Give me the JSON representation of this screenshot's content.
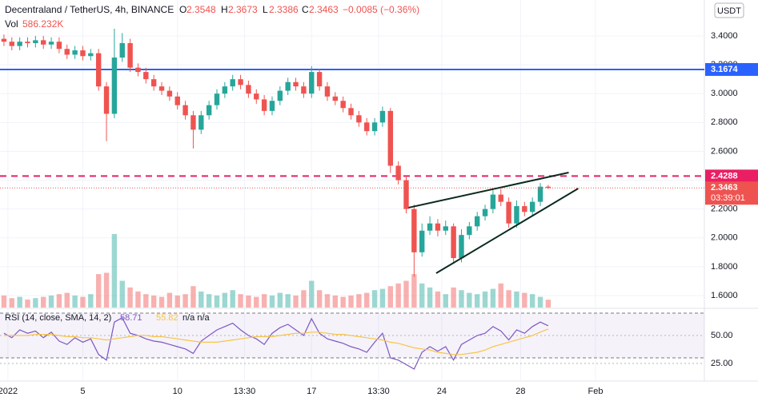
{
  "chart_data": {
    "type": "candlestick",
    "title": "Decentraland / TetherUS, 4h, BINANCE",
    "header": {
      "o": "O",
      "h": "H",
      "l": "L",
      "c": "C",
      "change": "−0.0085 (−0.36%)",
      "vol": "Vol",
      "vol_label": "586.232K"
    },
    "currency": "USDT",
    "xlim": [
      -0.5,
      88.8
    ],
    "xticks": [
      {
        "value": 0.5,
        "label": "2022"
      },
      {
        "value": 10,
        "label": "5"
      },
      {
        "value": 22,
        "label": "10"
      },
      {
        "value": 30.5,
        "label": "13:30"
      },
      {
        "value": 39,
        "label": "17"
      },
      {
        "value": 47.5,
        "label": "13:30"
      },
      {
        "value": 55.5,
        "label": "24"
      },
      {
        "value": 65.5,
        "label": "28"
      },
      {
        "value": 75,
        "label": "Feb"
      }
    ],
    "ylim": [
      1.517,
      3.649
    ],
    "yticks": [
      {
        "value": 1.6,
        "label": "1.6000"
      },
      {
        "value": 1.8,
        "label": "1.8000"
      },
      {
        "value": 2.0,
        "label": "2.0000"
      },
      {
        "value": 2.2,
        "label": "2.2000"
      },
      {
        "value": 2.4,
        "label": "2.4000"
      },
      {
        "value": 2.6,
        "label": "2.6000"
      },
      {
        "value": 2.8,
        "label": "2.8000"
      },
      {
        "value": 3.0,
        "label": "3.0000"
      },
      {
        "value": 3.2,
        "label": "3.2000"
      },
      {
        "value": 3.4,
        "label": "3.4000"
      }
    ],
    "grid": true,
    "up_color": "#26a69a",
    "down_color": "#ef5350",
    "open": [
      3.38,
      3.36,
      3.33,
      3.36,
      3.35,
      3.37,
      3.34,
      3.36,
      3.31,
      3.27,
      3.3,
      3.26,
      3.28,
      3.05,
      2.86,
      3.25,
      3.35,
      3.18,
      3.15,
      3.1,
      3.05,
      3.02,
      2.98,
      2.92,
      2.85,
      2.75,
      2.85,
      2.92,
      3.0,
      3.05,
      3.1,
      3.06,
      3.0,
      2.96,
      2.88,
      2.95,
      3.02,
      3.08,
      3.05,
      3.0,
      3.15,
      3.05,
      2.98,
      2.95,
      2.9,
      2.85,
      2.8,
      2.74,
      2.8,
      2.88,
      2.5,
      2.4,
      2.2,
      1.9,
      2.05,
      2.1,
      2.05,
      2.08,
      1.86,
      2.02,
      2.08,
      2.15,
      2.2,
      2.3,
      2.25,
      2.1,
      2.22,
      2.18,
      2.25,
      2.3548
    ],
    "high": [
      3.41,
      3.39,
      3.39,
      3.39,
      3.4,
      3.4,
      3.39,
      3.39,
      3.34,
      3.33,
      3.33,
      3.31,
      3.31,
      3.08,
      3.45,
      3.42,
      3.38,
      3.21,
      3.18,
      3.13,
      3.08,
      3.05,
      3.01,
      2.95,
      2.88,
      2.88,
      2.95,
      3.03,
      3.08,
      3.13,
      3.13,
      3.09,
      3.03,
      2.99,
      2.98,
      3.05,
      3.11,
      3.11,
      3.08,
      3.19,
      3.17,
      3.08,
      3.01,
      2.98,
      2.93,
      2.88,
      2.83,
      2.83,
      2.91,
      2.9,
      2.53,
      2.43,
      2.23,
      2.1,
      2.15,
      2.13,
      2.12,
      2.1,
      2.06,
      2.11,
      2.18,
      2.23,
      2.33,
      2.34,
      2.28,
      2.26,
      2.25,
      2.28,
      2.38,
      2.3673
    ],
    "low": [
      3.33,
      3.3,
      3.3,
      3.32,
      3.32,
      3.31,
      3.31,
      3.28,
      3.24,
      3.24,
      3.23,
      3.23,
      3.02,
      2.67,
      2.83,
      3.22,
      3.15,
      3.12,
      3.07,
      3.02,
      2.99,
      2.95,
      2.89,
      2.82,
      2.62,
      2.72,
      2.82,
      2.89,
      2.97,
      3.02,
      3.03,
      2.97,
      2.93,
      2.85,
      2.85,
      2.92,
      2.99,
      3.02,
      2.97,
      2.97,
      3.02,
      2.95,
      2.92,
      2.87,
      2.82,
      2.77,
      2.71,
      2.71,
      2.77,
      2.45,
      2.37,
      2.17,
      1.73,
      1.87,
      2.02,
      2.01,
      2.02,
      1.82,
      1.83,
      1.99,
      2.05,
      2.12,
      2.17,
      2.22,
      2.07,
      2.07,
      2.15,
      2.15,
      2.22,
      2.3386
    ],
    "close": [
      3.36,
      3.33,
      3.36,
      3.35,
      3.37,
      3.34,
      3.36,
      3.31,
      3.27,
      3.3,
      3.26,
      3.28,
      3.05,
      2.86,
      3.25,
      3.35,
      3.18,
      3.15,
      3.1,
      3.05,
      3.02,
      2.98,
      2.92,
      2.85,
      2.75,
      2.85,
      2.92,
      3.0,
      3.05,
      3.1,
      3.06,
      3.0,
      2.96,
      2.88,
      2.95,
      3.02,
      3.08,
      3.05,
      3.0,
      3.15,
      3.05,
      2.98,
      2.95,
      2.9,
      2.85,
      2.8,
      2.74,
      2.8,
      2.88,
      2.5,
      2.4,
      2.2,
      1.9,
      2.05,
      2.1,
      2.05,
      2.08,
      1.86,
      2.02,
      2.08,
      2.15,
      2.2,
      2.3,
      2.25,
      2.1,
      2.22,
      2.18,
      2.25,
      2.3548,
      2.3463
    ],
    "volume": {
      "ylim": [
        0,
        23000
      ],
      "values": [
        900,
        700,
        800,
        600,
        700,
        800,
        900,
        1000,
        1100,
        900,
        800,
        1000,
        2500,
        2600,
        5500,
        2000,
        1500,
        1200,
        1000,
        900,
        800,
        1100,
        900,
        1000,
        1600,
        1200,
        1000,
        900,
        1100,
        1300,
        1000,
        900,
        800,
        1000,
        900,
        1100,
        1000,
        900,
        1300,
        2000,
        1300,
        1000,
        900,
        800,
        900,
        1000,
        1100,
        1300,
        1400,
        1600,
        1800,
        2000,
        2500,
        1800,
        1500,
        1200,
        1000,
        1500,
        1300,
        1100,
        1000,
        1200,
        1400,
        1800,
        1300,
        1200,
        1100,
        1000,
        800,
        586.232
      ]
    },
    "levels": [
      {
        "value": 3.1674,
        "color": "#2962ff",
        "style": "solid"
      },
      {
        "value": 2.4288,
        "color": "#e91e63",
        "style": "dashed"
      }
    ],
    "last_price": {
      "countdown": "03:39:01"
    },
    "trendlines": [
      {
        "x": [
          51.3,
          71.6
        ],
        "y": [
          2.2095,
          2.453
        ]
      },
      {
        "x": [
          54.8,
          72.8
        ],
        "y": [
          1.755,
          2.342
        ]
      }
    ],
    "rsi": {
      "label": "RSI (14, close, SMA, 14, 2)",
      "na": "n/a n/a",
      "color": "#7e57c2",
      "ma_color": "#f7c548",
      "ylim": [
        10.7,
        72.9
      ],
      "yticks": [
        {
          "value": 25,
          "label": "25.00"
        },
        {
          "value": 50,
          "label": "50.00"
        }
      ],
      "bands": [
        30,
        70
      ],
      "values": [
        52,
        48,
        55,
        52,
        54,
        48,
        53,
        45,
        42,
        48,
        44,
        47,
        33,
        28,
        62,
        66,
        52,
        50,
        47,
        45,
        44,
        42,
        40,
        38,
        34,
        45,
        50,
        55,
        58,
        61,
        55,
        50,
        47,
        42,
        52,
        57,
        60,
        55,
        50,
        65,
        52,
        47,
        45,
        43,
        40,
        38,
        35,
        44,
        52,
        30,
        28,
        24,
        20,
        35,
        40,
        36,
        40,
        28,
        42,
        46,
        50,
        52,
        58,
        54,
        46,
        55,
        52,
        58,
        62,
        58.71
      ],
      "ma": [
        50,
        50,
        50,
        50,
        51,
        51,
        51,
        50,
        49,
        49,
        48,
        48,
        47,
        46,
        47,
        48,
        49,
        50,
        50,
        49,
        49,
        48,
        47,
        46,
        45,
        44,
        44,
        44,
        45,
        46,
        47,
        48,
        49,
        49,
        49,
        50,
        51,
        52,
        52,
        53,
        53,
        52,
        51,
        51,
        50,
        49,
        48,
        47,
        46,
        44,
        43,
        41,
        39,
        38,
        37,
        35,
        34,
        33,
        33,
        34,
        35,
        37,
        40,
        42,
        44,
        46,
        48,
        50,
        53,
        55.82
      ]
    }
  }
}
